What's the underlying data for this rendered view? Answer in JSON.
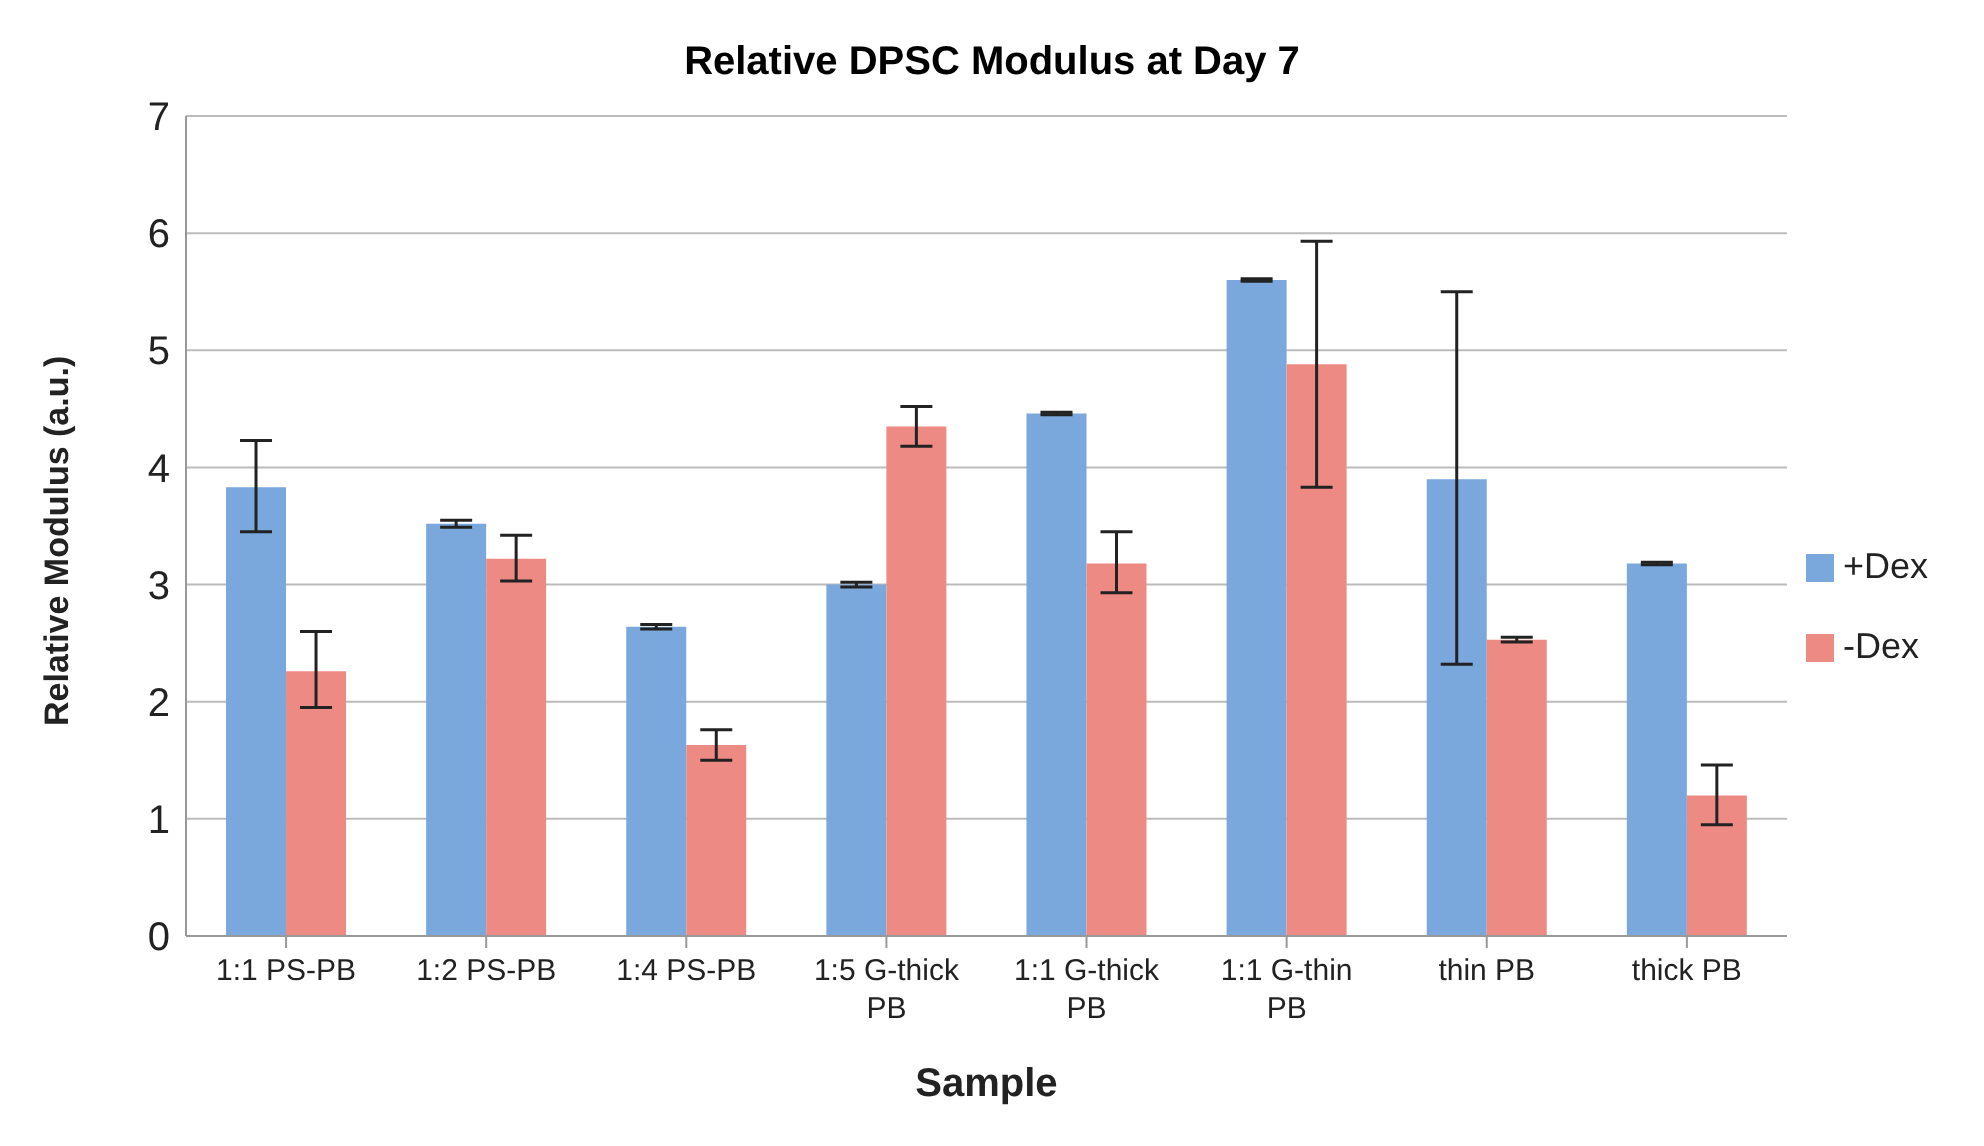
{
  "chart_data": {
    "type": "bar",
    "title": "Relative DPSC Modulus at Day 7",
    "xlabel": "Sample",
    "ylabel": "Relative Modulus (a.u.)",
    "categories": [
      "1:1 PS-PB",
      "1:2 PS-PB",
      "1:4 PS-PB",
      "1:5 G-thick PB",
      "1:1 G-thick PB",
      "1:1 G-thin PB",
      "thin PB",
      "thick PB"
    ],
    "series": [
      {
        "name": "+Dex",
        "color": "#7aa7dc",
        "values": [
          3.83,
          3.52,
          2.64,
          3.0,
          4.46,
          5.6,
          3.9,
          3.18
        ],
        "errors": [
          [
            3.45,
            4.23
          ],
          0.03,
          0.02,
          0.02,
          0.01,
          0.01,
          [
            2.32,
            5.5
          ],
          0.01
        ]
      },
      {
        "name": "-Dex",
        "color": "#ee8a84",
        "values": [
          2.26,
          3.22,
          1.63,
          4.35,
          3.18,
          4.88,
          2.53,
          1.2
        ],
        "errors": [
          [
            1.95,
            2.6
          ],
          [
            3.03,
            3.42
          ],
          [
            1.5,
            1.76
          ],
          [
            4.18,
            4.52
          ],
          [
            2.93,
            3.45
          ],
          [
            3.83,
            5.93
          ],
          0.02,
          [
            0.95,
            1.46
          ]
        ]
      }
    ],
    "ylim": [
      0,
      7
    ],
    "yticks": [
      0,
      1,
      2,
      3,
      4,
      5,
      6,
      7
    ],
    "grid": "y",
    "legend": "right"
  }
}
